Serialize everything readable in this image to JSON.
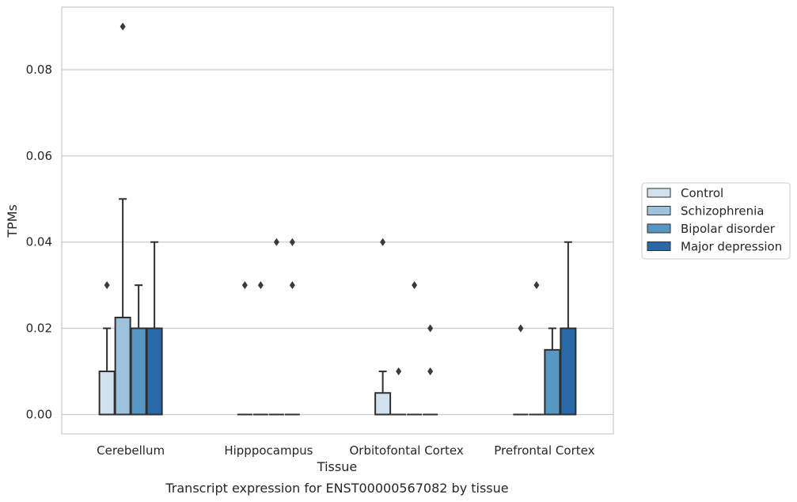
{
  "chart_data": {
    "type": "boxplot",
    "xlabel": "Tissue",
    "ylabel": "TPMs",
    "caption": "Transcript expression for ENST00000567082 by tissue",
    "ylim": [
      -0.0045,
      0.0945
    ],
    "yticks": [
      0.0,
      0.02,
      0.04,
      0.06,
      0.08
    ],
    "ytick_labels": [
      "0.00",
      "0.02",
      "0.04",
      "0.06",
      "0.08"
    ],
    "grid": "horizontal",
    "legend_position": "right",
    "categories": [
      "Cerebellum",
      "Hipppocampus",
      "Orbitofontal Cortex",
      "Prefrontal Cortex"
    ],
    "series": [
      {
        "name": "Control",
        "color": "#d1e1ee",
        "boxes": [
          {
            "q1": 0.0,
            "median": 0.0,
            "q3": 0.01,
            "whisker_low": 0.0,
            "whisker_high": 0.02,
            "outliers": [
              0.03
            ]
          },
          {
            "q1": 0.0,
            "median": 0.0,
            "q3": 0.0,
            "whisker_low": 0.0,
            "whisker_high": 0.0,
            "outliers": [
              0.03
            ]
          },
          {
            "q1": 0.0,
            "median": 0.0,
            "q3": 0.005,
            "whisker_low": 0.0,
            "whisker_high": 0.01,
            "outliers": [
              0.04
            ]
          },
          {
            "q1": 0.0,
            "median": 0.0,
            "q3": 0.0,
            "whisker_low": 0.0,
            "whisker_high": 0.0,
            "outliers": [
              0.02
            ]
          }
        ]
      },
      {
        "name": "Schizophrenia",
        "color": "#9dc3dc",
        "boxes": [
          {
            "q1": 0.0,
            "median": 0.0,
            "q3": 0.0225,
            "whisker_low": 0.0,
            "whisker_high": 0.05,
            "outliers": [
              0.09
            ]
          },
          {
            "q1": 0.0,
            "median": 0.0,
            "q3": 0.0,
            "whisker_low": 0.0,
            "whisker_high": 0.0,
            "outliers": [
              0.03
            ]
          },
          {
            "q1": 0.0,
            "median": 0.0,
            "q3": 0.0,
            "whisker_low": 0.0,
            "whisker_high": 0.0,
            "outliers": [
              0.01
            ]
          },
          {
            "q1": 0.0,
            "median": 0.0,
            "q3": 0.0,
            "whisker_low": 0.0,
            "whisker_high": 0.0,
            "outliers": [
              0.03
            ]
          }
        ]
      },
      {
        "name": "Bipolar disorder",
        "color": "#5797c4",
        "boxes": [
          {
            "q1": 0.0,
            "median": 0.0,
            "q3": 0.02,
            "whisker_low": 0.0,
            "whisker_high": 0.03,
            "outliers": []
          },
          {
            "q1": 0.0,
            "median": 0.0,
            "q3": 0.0,
            "whisker_low": 0.0,
            "whisker_high": 0.0,
            "outliers": [
              0.04
            ]
          },
          {
            "q1": 0.0,
            "median": 0.0,
            "q3": 0.0,
            "whisker_low": 0.0,
            "whisker_high": 0.0,
            "outliers": [
              0.03
            ]
          },
          {
            "q1": 0.0,
            "median": 0.0,
            "q3": 0.015,
            "whisker_low": 0.0,
            "whisker_high": 0.02,
            "outliers": []
          }
        ]
      },
      {
        "name": "Major depression",
        "color": "#2a69a8",
        "boxes": [
          {
            "q1": 0.0,
            "median": 0.0,
            "q3": 0.02,
            "whisker_low": 0.0,
            "whisker_high": 0.04,
            "outliers": []
          },
          {
            "q1": 0.0,
            "median": 0.0,
            "q3": 0.0,
            "whisker_low": 0.0,
            "whisker_high": 0.0,
            "outliers": [
              0.04,
              0.03
            ]
          },
          {
            "q1": 0.0,
            "median": 0.0,
            "q3": 0.0,
            "whisker_low": 0.0,
            "whisker_high": 0.0,
            "outliers": [
              0.02,
              0.01
            ]
          },
          {
            "q1": 0.0,
            "median": 0.0,
            "q3": 0.02,
            "whisker_low": 0.0,
            "whisker_high": 0.04,
            "outliers": []
          }
        ]
      }
    ]
  }
}
